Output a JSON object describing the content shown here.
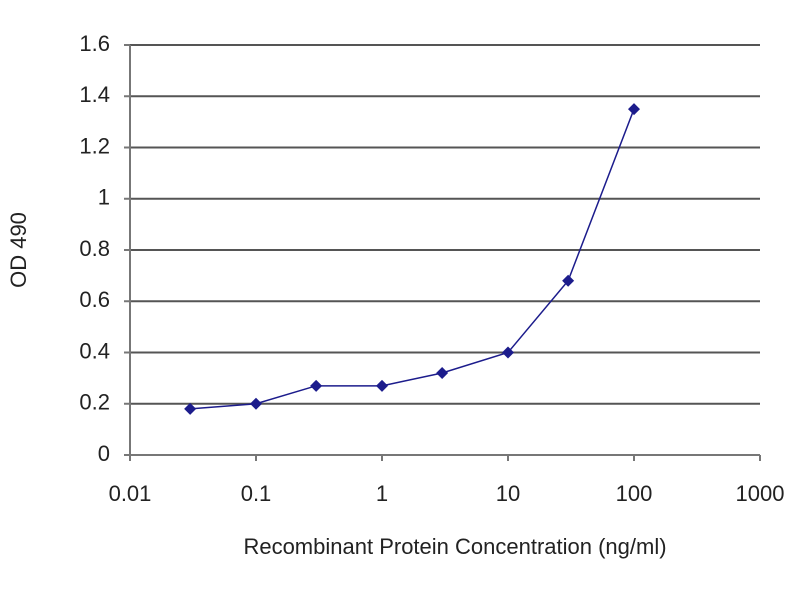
{
  "chart_data": {
    "type": "line",
    "x_label": "Recombinant Protein Concentration (ng/ml)",
    "y_label": "OD 490",
    "x": [
      0.03,
      0.1,
      0.3,
      1,
      3,
      10,
      30,
      100
    ],
    "values": [
      0.18,
      0.2,
      0.27,
      0.27,
      0.32,
      0.4,
      0.68,
      1.35
    ],
    "color": "#1c1c8c",
    "log_x": true,
    "xlim": [
      0.01,
      1000
    ],
    "xticks": [
      0.01,
      0.1,
      1,
      10,
      100,
      1000
    ],
    "ylim": [
      0,
      1.6
    ],
    "yticks": [
      0,
      0.2,
      0.4,
      0.6,
      0.8,
      1,
      1.2,
      1.4,
      1.6
    ],
    "grid": true
  }
}
